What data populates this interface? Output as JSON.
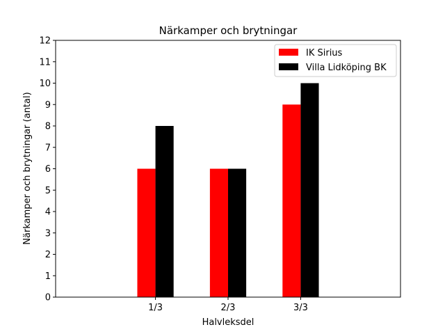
{
  "chart_data": {
    "type": "bar",
    "title": "Närkamper och brytningar",
    "xlabel": "Halvleksdel",
    "ylabel": "Närkamper och brytningar (antal)",
    "categories": [
      "1/3",
      "2/3",
      "3/3"
    ],
    "series": [
      {
        "name": "IK Sirius",
        "color": "#ff0000",
        "values": [
          6,
          6,
          9
        ]
      },
      {
        "name": "Villa Lidköping BK",
        "color": "#000000",
        "values": [
          8,
          6,
          10
        ]
      }
    ],
    "ylim": [
      0,
      12
    ],
    "yticks": [
      0,
      1,
      2,
      3,
      4,
      5,
      6,
      7,
      8,
      9,
      10,
      11,
      12
    ],
    "grid": false,
    "legend_position": "top-right"
  }
}
